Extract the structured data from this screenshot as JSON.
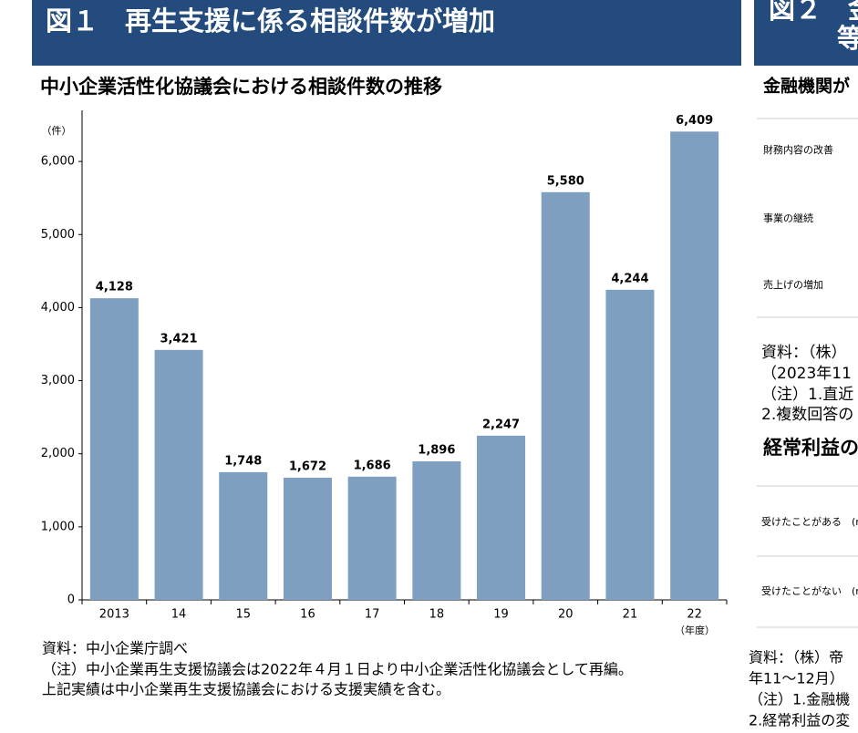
{
  "header": "図１　再生支援に係る相談件数が増加",
  "chart_data": {
    "type": "bar",
    "title": "中小企業活性化協議会における相談件数の推移",
    "y_unit": "（件）",
    "x_unit": "（年度）",
    "categories": [
      "2013",
      "14",
      "15",
      "16",
      "17",
      "18",
      "19",
      "20",
      "21",
      "22"
    ],
    "values": [
      4128,
      3421,
      1748,
      1672,
      1686,
      1896,
      2247,
      5580,
      4244,
      6409
    ],
    "value_labels": [
      "4,128",
      "3,421",
      "1,748",
      "1,672",
      "1,686",
      "1,896",
      "2,247",
      "5,580",
      "4,244",
      "6,409"
    ],
    "color": "#7f9fc1",
    "ylim": [
      0,
      6700
    ],
    "yticks": [
      0,
      {
        "value": 1000,
        "label": "1,000"
      },
      {
        "value": 2000,
        "label": "2,000"
      },
      {
        "value": 3000,
        "label": "3,000"
      },
      {
        "value": 4000,
        "label": "4,000"
      },
      {
        "value": 5000,
        "label": "5,000"
      },
      {
        "value": 6000,
        "label": "6,000"
      }
    ],
    "grid": false
  },
  "notes": [
    "資料：中小企業庁調べ",
    "（注）中小企業再生支援協議会は2022年４月１日より中小企業活性化協議会として再編。",
    "上記実績は中小企業再生支援協議会における支援実績を含む。"
  ],
  "right_panel": {
    "header": [
      "図２　金",
      "等"
    ],
    "subtitle1": "金融機関が",
    "items1": [
      "財務内容の改善",
      "事業の継続",
      "売上げの増加"
    ],
    "notes1": [
      "資料：（株）",
      "（2023年11",
      "（注）1.直近",
      "2.複数回答の"
    ],
    "subtitle2": "経常利益の",
    "items2": [
      "受けたことがある　(n",
      "受けたことがない　(n"
    ],
    "notes2": [
      "資料：（株）帝",
      "年11〜12月）",
      "（注）1.金融機",
      "2.経常利益の変"
    ]
  }
}
